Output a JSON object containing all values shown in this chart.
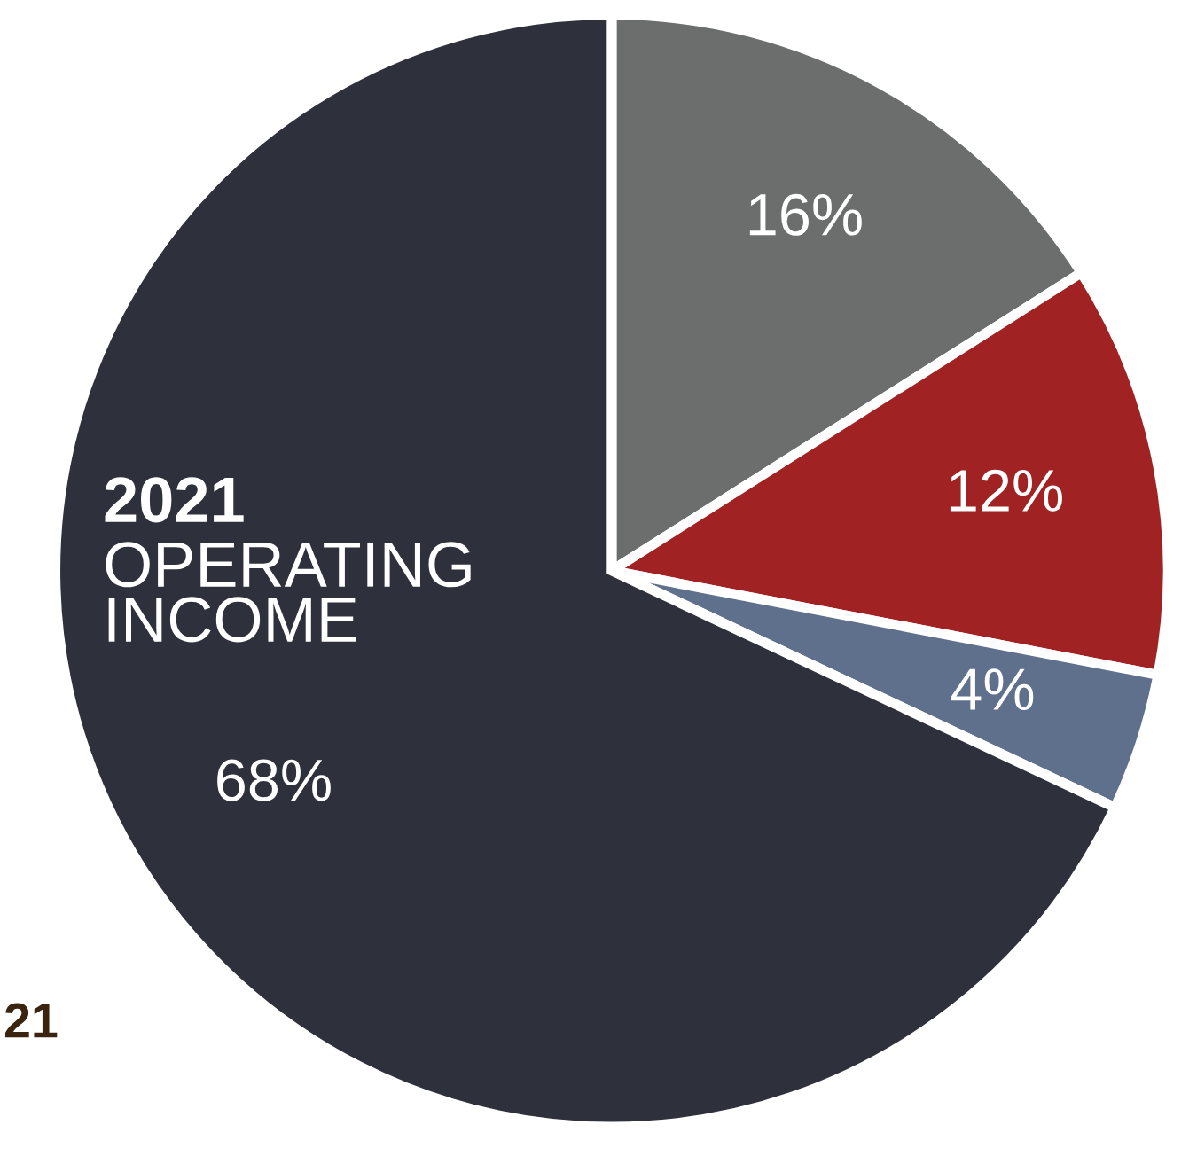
{
  "chart_data": {
    "type": "pie",
    "title": "2021",
    "subtitle": "OPERATING INCOME",
    "categories": [
      null,
      null,
      null,
      null
    ],
    "values": [
      16,
      12,
      4,
      68
    ],
    "colors": [
      "#6b6e6c",
      "#a02222",
      "#5f708c",
      "#2e303c"
    ],
    "value_labels": [
      "16%",
      "12%",
      "4%",
      "68%"
    ],
    "annotations": [
      "21"
    ]
  }
}
